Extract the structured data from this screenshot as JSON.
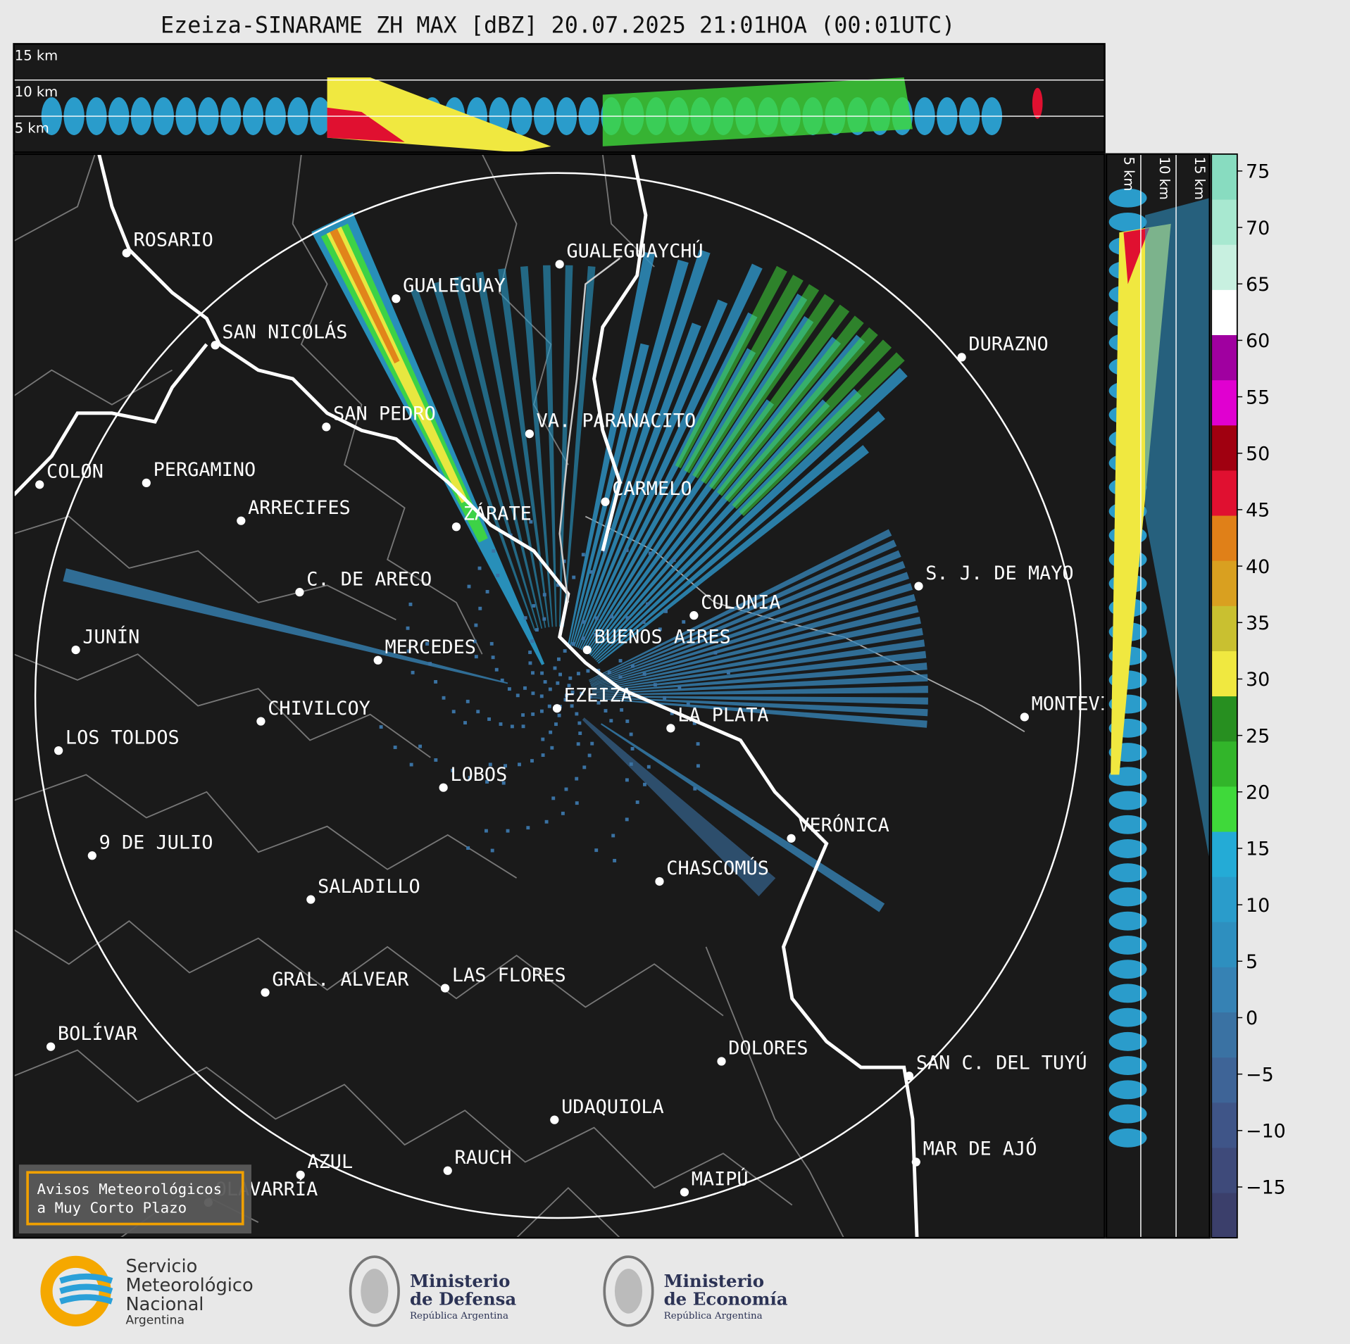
{
  "title": "Ezeiza-SINARAME ZH MAX [dBZ] 20.07.2025 21:01HOA (00:01UTC)",
  "top_panel": {
    "heights": [
      "15 km",
      "10 km",
      "5 km"
    ]
  },
  "side_panel": {
    "heights": [
      "5 km",
      "10 km",
      "15 km"
    ]
  },
  "cities": [
    "ROSARIO",
    "GUALEGUAYCHÚ",
    "GUALEGUAY",
    "SAN NICOLÁS",
    "DURAZNO",
    "SAN PEDRO",
    "VA. PARANACITO",
    "COLON",
    "PERGAMINO",
    "CARMELO",
    "ARRECIFES",
    "ZÁRATE",
    "S. J. DE MAYO",
    "C. DE ARECO",
    "COLONIA",
    "BUENOS AIRES",
    "JUNÍN",
    "MERCEDES",
    "EZEIZA",
    "MONTEVIDEO",
    "LA PLATA",
    "CHIVILCOY",
    "LOS TOLDOS",
    "LOBOS",
    "VERÓNICA",
    "9 DE JULIO",
    "CHASCOMÚS",
    "SALADILLO",
    "GRAL. ALVEAR",
    "LAS FLORES",
    "BOLÍVAR",
    "DOLORES",
    "SAN C. DEL TUYÚ",
    "UDAQUIOLA",
    "MAR DE AJÓ",
    "AZUL",
    "RAUCH",
    "OLAVARRÍA",
    "MAIPÚ"
  ],
  "banner": [
    "Avisos Meteorológicos",
    "a Muy Corto Plazo"
  ],
  "colorbar": {
    "lim": [
      -19.5,
      76.5
    ],
    "ticks": [
      75,
      70,
      65,
      60,
      55,
      50,
      45,
      40,
      35,
      30,
      25,
      20,
      15,
      10,
      5,
      0,
      {
        "value": -5,
        "label": "−5"
      },
      {
        "value": -10,
        "label": "−10"
      },
      {
        "value": -15,
        "label": "−15"
      }
    ],
    "colors": [
      "#3b3f6b",
      "#3e4a7a",
      "#3f5588",
      "#3e6497",
      "#3a72a3",
      "#3682b4",
      "#2e8fbf",
      "#2a9ccb",
      "#24abd6",
      "#3fd93a",
      "#32b52a",
      "#278f20",
      "#f0e840",
      "#c9c030",
      "#d9a020",
      "#e08018",
      "#e01030",
      "#a00010",
      "#e000d0",
      "#a000a0",
      "#ffffff",
      "#c8f0e0",
      "#a8e8d0",
      "#88dcc0"
    ]
  },
  "footer": {
    "smn": [
      "Servicio",
      "Meteorológico",
      "Nacional",
      "Argentina"
    ],
    "defensa": [
      "Ministerio",
      "de Defensa",
      "República Argentina"
    ],
    "economia": [
      "Ministerio",
      "de Economía",
      "República Argentina"
    ]
  }
}
